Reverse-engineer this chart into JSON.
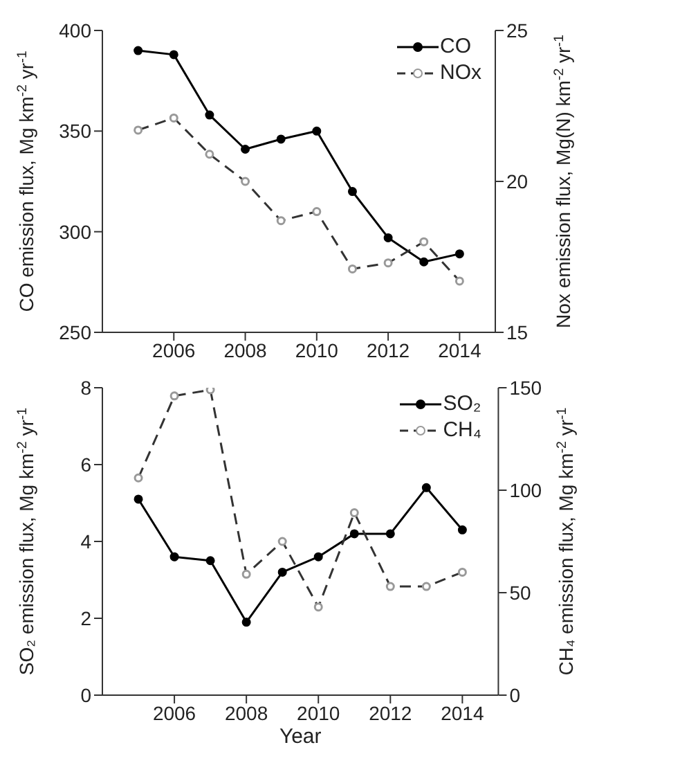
{
  "chart_data": [
    {
      "type": "line",
      "x": [
        2005,
        2006,
        2007,
        2008,
        2009,
        2010,
        2011,
        2012,
        2013,
        2014
      ],
      "xlim": [
        2004,
        2015
      ],
      "xticks": [
        2006,
        2008,
        2010,
        2012,
        2014
      ],
      "ylabel": "CO emission flux, Mg km$^{-2}$ yr$^{-1}$",
      "y2label": "Nox emission flux, Mg(N) km$^{-2}$ yr$^{-1}$",
      "ylim": [
        250,
        400
      ],
      "yticks": [
        250,
        300,
        350,
        400
      ],
      "y2lim": [
        15,
        25
      ],
      "y2ticks": [
        15,
        20,
        25
      ],
      "legend": "top right",
      "grid": false,
      "series": [
        {
          "name": "CO",
          "color": "#000000",
          "line_style": "solid",
          "marker": "circle",
          "values": [
            390,
            388,
            358,
            341,
            346,
            350,
            320,
            297,
            285,
            289
          ]
        },
        {
          "name": "NOx",
          "color": "#333333",
          "line_style": "dashed",
          "marker": "circle",
          "axis": "y2",
          "values": [
            21.7,
            22.1,
            20.9,
            20.0,
            18.7,
            19.0,
            17.1,
            17.3,
            18.0,
            16.7
          ]
        }
      ]
    },
    {
      "type": "line",
      "x": [
        2005,
        2006,
        2007,
        2008,
        2009,
        2010,
        2011,
        2012,
        2013,
        2014
      ],
      "xlim": [
        2004,
        2015
      ],
      "xticks": [
        2006,
        2008,
        2010,
        2012,
        2014
      ],
      "xlabel": "Year",
      "ylabel": "SO₂ emission flux, Mg km$^{-2}$ yr$^{-1}$",
      "y2label": "CH₄ emission flux, Mg km$^{-2}$ yr$^{-1}$",
      "ylim": [
        0,
        8
      ],
      "yticks": [
        0,
        2,
        4,
        6,
        8
      ],
      "y2lim": [
        0,
        150
      ],
      "y2ticks": [
        0,
        50,
        100,
        150
      ],
      "legend": "top right",
      "grid": false,
      "series": [
        {
          "name": "SO₂",
          "color": "#000000",
          "line_style": "solid",
          "marker": "circle",
          "values": [
            5.1,
            3.6,
            3.5,
            1.9,
            3.2,
            3.6,
            4.2,
            4.2,
            5.4,
            4.3
          ]
        },
        {
          "name": "CH₄",
          "color": "#333333",
          "line_style": "dashed",
          "marker": "circle",
          "axis": "y2",
          "values": [
            106,
            146,
            149,
            59,
            75,
            43,
            89,
            53,
            53,
            60
          ]
        }
      ]
    }
  ]
}
